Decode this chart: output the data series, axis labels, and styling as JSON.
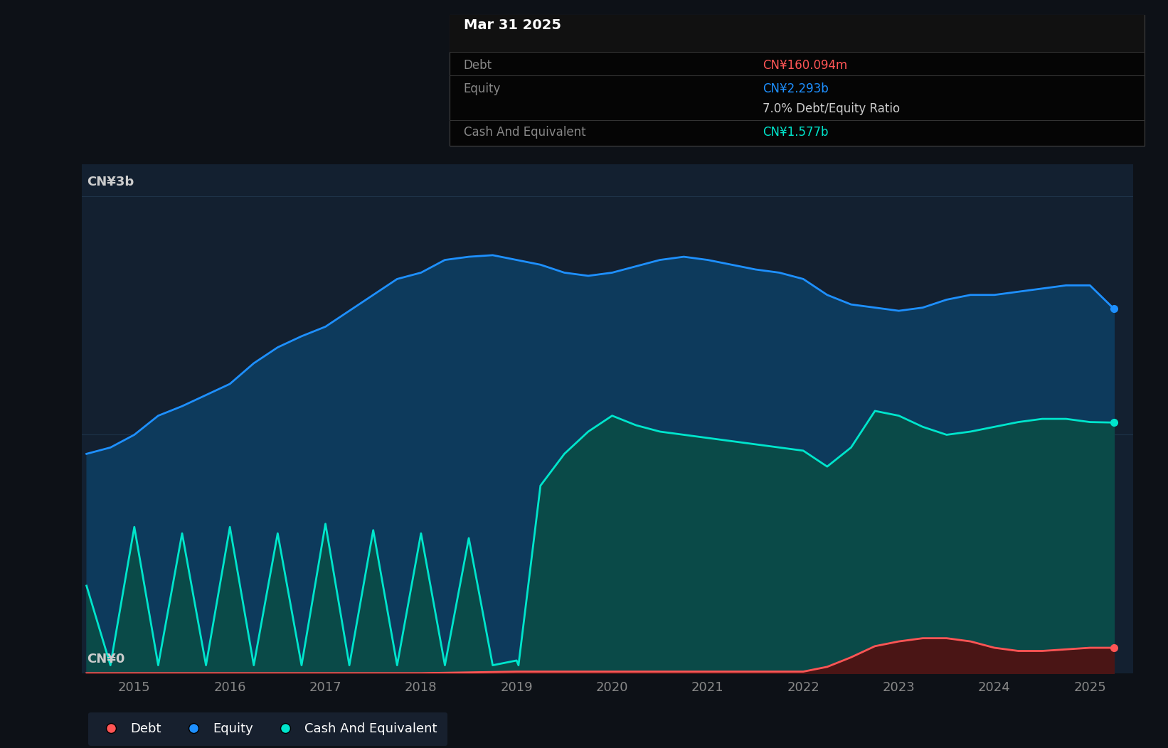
{
  "bg_color": "#0d1117",
  "plot_bg_color": "#132030",
  "ylabel_3b": "CN¥3b",
  "ylabel_0": "CN¥0",
  "x_ticks": [
    2015,
    2016,
    2017,
    2018,
    2019,
    2020,
    2021,
    2022,
    2023,
    2024,
    2025
  ],
  "equity_color": "#1e90ff",
  "equity_fill": "#0d3a5c",
  "cash_color": "#00e5cc",
  "cash_fill": "#0a4a48",
  "debt_color": "#ff5555",
  "debt_fill": "#4a1515",
  "grid_color": "#1e3348",
  "tooltip_bg": "#050505",
  "tooltip_border": "#444444",
  "tooltip_title": "Mar 31 2025",
  "tooltip_debt_label": "Debt",
  "tooltip_debt_value": "CN¥160.094m",
  "tooltip_equity_label": "Equity",
  "tooltip_equity_value": "CN¥2.293b",
  "tooltip_ratio": "7.0% Debt/Equity Ratio",
  "tooltip_cash_label": "Cash And Equivalent",
  "tooltip_cash_value": "CN¥1.577b",
  "legend_items": [
    "Debt",
    "Equity",
    "Cash And Equivalent"
  ],
  "legend_colors": [
    "#ff5555",
    "#1e90ff",
    "#00e5cc"
  ],
  "equity_data_x": [
    2014.5,
    2014.75,
    2015.0,
    2015.25,
    2015.5,
    2015.75,
    2016.0,
    2016.25,
    2016.5,
    2016.75,
    2017.0,
    2017.25,
    2017.5,
    2017.75,
    2018.0,
    2018.25,
    2018.5,
    2018.75,
    2019.0,
    2019.25,
    2019.5,
    2019.75,
    2020.0,
    2020.25,
    2020.5,
    2020.75,
    2021.0,
    2021.25,
    2021.5,
    2021.75,
    2022.0,
    2022.25,
    2022.5,
    2022.75,
    2023.0,
    2023.25,
    2023.5,
    2023.75,
    2024.0,
    2024.25,
    2024.5,
    2024.75,
    2025.0,
    2025.25
  ],
  "equity_data_y": [
    1.38,
    1.42,
    1.5,
    1.62,
    1.68,
    1.75,
    1.82,
    1.95,
    2.05,
    2.12,
    2.18,
    2.28,
    2.38,
    2.48,
    2.52,
    2.6,
    2.62,
    2.63,
    2.6,
    2.57,
    2.52,
    2.5,
    2.52,
    2.56,
    2.6,
    2.62,
    2.6,
    2.57,
    2.54,
    2.52,
    2.48,
    2.38,
    2.32,
    2.3,
    2.28,
    2.3,
    2.35,
    2.38,
    2.38,
    2.4,
    2.42,
    2.44,
    2.44,
    2.293
  ],
  "cash_data_x": [
    2014.5,
    2014.75,
    2015.0,
    2015.25,
    2015.5,
    2015.75,
    2016.0,
    2016.25,
    2016.5,
    2016.75,
    2017.0,
    2017.25,
    2017.5,
    2017.75,
    2018.0,
    2018.25,
    2018.5,
    2018.75,
    2019.0,
    2019.02,
    2019.25,
    2019.5,
    2019.75,
    2020.0,
    2020.25,
    2020.5,
    2020.75,
    2021.0,
    2021.25,
    2021.5,
    2021.75,
    2022.0,
    2022.25,
    2022.5,
    2022.75,
    2023.0,
    2023.25,
    2023.5,
    2023.75,
    2024.0,
    2024.25,
    2024.5,
    2024.75,
    2025.0,
    2025.25
  ],
  "cash_data_y": [
    0.55,
    0.05,
    0.92,
    0.05,
    0.88,
    0.05,
    0.92,
    0.05,
    0.88,
    0.05,
    0.94,
    0.05,
    0.9,
    0.05,
    0.88,
    0.05,
    0.85,
    0.05,
    0.08,
    0.05,
    1.18,
    1.38,
    1.52,
    1.62,
    1.56,
    1.52,
    1.5,
    1.48,
    1.46,
    1.44,
    1.42,
    1.4,
    1.3,
    1.42,
    1.65,
    1.62,
    1.55,
    1.5,
    1.52,
    1.55,
    1.58,
    1.6,
    1.6,
    1.58,
    1.577
  ],
  "debt_data_x": [
    2014.5,
    2015.0,
    2016.0,
    2017.0,
    2018.0,
    2019.0,
    2020.0,
    2021.0,
    2022.0,
    2022.25,
    2022.5,
    2022.75,
    2023.0,
    2023.25,
    2023.5,
    2023.75,
    2024.0,
    2024.25,
    2024.5,
    2024.75,
    2025.0,
    2025.25
  ],
  "debt_data_y": [
    0.0,
    0.0,
    0.0,
    0.0,
    0.0,
    0.01,
    0.01,
    0.01,
    0.01,
    0.04,
    0.1,
    0.17,
    0.2,
    0.22,
    0.22,
    0.2,
    0.16,
    0.14,
    0.14,
    0.15,
    0.16,
    0.16
  ],
  "ylim": [
    0,
    3.2
  ],
  "xlim": [
    2014.45,
    2025.45
  ]
}
